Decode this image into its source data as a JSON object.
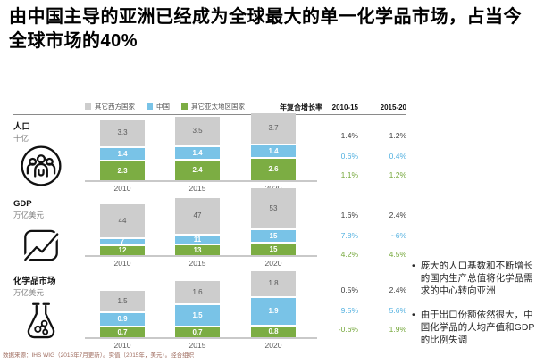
{
  "title": "由中国主导的亚洲已经成为全球最大的单一化学品市场，占当今全球市场的40%",
  "legend": [
    {
      "label": "其它西方国家",
      "color": "#cdcdcd"
    },
    {
      "label": "中国",
      "color": "#79c3e7"
    },
    {
      "label": "其它亚太地区国家",
      "color": "#7cad43"
    }
  ],
  "cagr_header": {
    "label": "年复合增长率",
    "period1": "2010-15",
    "period2": "2015-20"
  },
  "chart_data": [
    {
      "type": "bar",
      "stacked": true,
      "title": "人口",
      "unit": "十亿",
      "icon": "people-icon",
      "highlighted": false,
      "categories": [
        "2010",
        "2015",
        "2020"
      ],
      "series": [
        {
          "name": "其它西方国家",
          "color": "#cdcdcd",
          "label_color": "#595959",
          "cagr_color": "#404040",
          "values": [
            3.3,
            3.5,
            3.7
          ],
          "cagr_2010_15": "1.4%",
          "cagr_2015_20": "1.2%"
        },
        {
          "name": "中国",
          "color": "#79c3e7",
          "label_color": "#ffffff",
          "cagr_color": "#53b1e0",
          "values": [
            1.4,
            1.4,
            1.4
          ],
          "cagr_2010_15": "0.6%",
          "cagr_2015_20": "0.4%"
        },
        {
          "name": "其它亚太地区国家",
          "color": "#7cad43",
          "label_color": "#ffffff",
          "cagr_color": "#76a83c",
          "values": [
            2.3,
            2.4,
            2.6
          ],
          "cagr_2010_15": "1.1%",
          "cagr_2015_20": "1.2%"
        }
      ]
    },
    {
      "type": "bar",
      "stacked": true,
      "title": "GDP",
      "unit": "万亿美元",
      "icon": "chart-icon",
      "highlighted": false,
      "categories": [
        "2010",
        "2015",
        "2020"
      ],
      "series": [
        {
          "name": "其它西方国家",
          "color": "#cdcdcd",
          "label_color": "#595959",
          "cagr_color": "#404040",
          "values": [
            44,
            47,
            53
          ],
          "cagr_2010_15": "1.6%",
          "cagr_2015_20": "2.4%"
        },
        {
          "name": "中国",
          "color": "#79c3e7",
          "label_color": "#ffffff",
          "cagr_color": "#53b1e0",
          "values": [
            7,
            11,
            15
          ],
          "cagr_2010_15": "7.8%",
          "cagr_2015_20": "~6%"
        },
        {
          "name": "其它亚太地区国家",
          "color": "#7cad43",
          "label_color": "#ffffff",
          "cagr_color": "#76a83c",
          "values": [
            12,
            13,
            15
          ],
          "cagr_2010_15": "4.2%",
          "cagr_2015_20": "4.5%"
        }
      ]
    },
    {
      "type": "bar",
      "stacked": true,
      "title": "化学品市场",
      "unit": "万亿美元",
      "icon": "flask-icon",
      "highlighted": true,
      "categories": [
        "2010",
        "2015",
        "2020"
      ],
      "series": [
        {
          "name": "其它西方国家",
          "color": "#cdcdcd",
          "label_color": "#595959",
          "cagr_color": "#404040",
          "values": [
            1.5,
            1.6,
            1.8
          ],
          "cagr_2010_15": "0.5%",
          "cagr_2015_20": "2.4%"
        },
        {
          "name": "中国",
          "color": "#79c3e7",
          "label_color": "#ffffff",
          "cagr_color": "#53b1e0",
          "values": [
            0.9,
            1.5,
            1.9
          ],
          "cagr_2010_15": "9.5%",
          "cagr_2015_20": "5.6%"
        },
        {
          "name": "其它亚太地区国家",
          "color": "#7cad43",
          "label_color": "#ffffff",
          "cagr_color": "#76a83c",
          "values": [
            0.7,
            0.7,
            0.8
          ],
          "cagr_2010_15": "-0.6%",
          "cagr_2015_20": "1.9%"
        }
      ]
    }
  ],
  "bullets": [
    "庞大的人口基数和不断增长的国内生产总值将化学品需求的中心转向亚洲",
    "由于出口份额依然很大，中国化学品的人均产值和GDP的比例失调"
  ],
  "footnote": "数据来源：IHS WIG（2015年7月更新）。实值（2015年，美元）。经合组织"
}
